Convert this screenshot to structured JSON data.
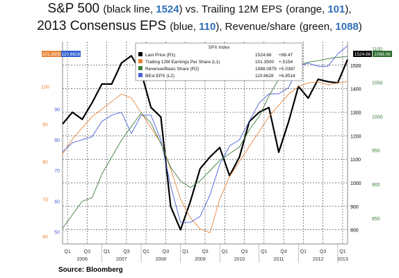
{
  "title_line1": {
    "lead": "S&P 500",
    "p1": "(black line, ",
    "v1": "1524",
    "p2": ") vs. Trailing 12M EPS",
    "p3": "(orange, ",
    "v2": "101",
    "p4": "),"
  },
  "title_line2": {
    "lead": "2013 Consensus EPS",
    "p1": "(blue, ",
    "v1": "110",
    "p2": "), Revenue/share",
    "p3": "(green, ",
    "v2": "1088",
    "p4": ")"
  },
  "source": "Source:  Bloomberg",
  "chart_data": {
    "type": "line",
    "legend": {
      "header": "SPX Index",
      "placement": "top-center",
      "entries": [
        {
          "label": "Last Price  (R1)",
          "value": "1524.66",
          "change": "+98.47",
          "color": "#000000"
        },
        {
          "label": "Trailing 12M Earnings Per Share  (L1)",
          "value": "101.3500",
          "change": "+.5154",
          "color": "#e8853a"
        },
        {
          "label": "Revenue/Basic Share  (R2)",
          "value": "1088.0879",
          "change": "+5.0387",
          "color": "#3e7c3e"
        },
        {
          "label": "BEst EPS  (L2)",
          "value": "110.6628",
          "change": "+6.8514",
          "color": "#4a5fd6"
        }
      ]
    },
    "x_axis": {
      "quarter_ticks": [
        "Q1",
        "Q3",
        "Q1",
        "Q3",
        "Q1",
        "Q3",
        "Q1",
        "Q3",
        "Q1",
        "Q3",
        "Q1",
        "Q3",
        "Q1",
        "Q3",
        "Q1"
      ],
      "years": [
        "2006",
        "2007",
        "2008",
        "2009",
        "2010",
        "2011",
        "2012",
        "2013"
      ]
    },
    "left_orange_axis": {
      "ticks": [
        "100",
        "90",
        "80",
        "70",
        "60"
      ],
      "range": [
        58,
        112
      ]
    },
    "left_blue_axis": {
      "ticks": [
        "90",
        "80",
        "70",
        "60",
        "50"
      ],
      "range": [
        46,
        112
      ]
    },
    "right_price_axis": {
      "ticks": [
        "1500",
        "1400",
        "1300",
        "1200",
        "1100",
        "1000",
        "900",
        "800"
      ],
      "range": [
        740,
        1600
      ]
    },
    "right_revenue_axis": {
      "ticks": [
        "1100",
        "1050",
        "1000",
        "950",
        "900",
        "850"
      ],
      "range": [
        812,
        1110
      ]
    },
    "current_value_labels": {
      "orange": "101.3500",
      "blue": "110.6628",
      "price": "1524.66",
      "revenue": "1088.08"
    },
    "x_range": [
      2006.0,
      2013.25
    ],
    "series": [
      {
        "name": "Last Price (R1)",
        "color": "#000000",
        "axis": "right_price",
        "x": [
          2006.0,
          2006.25,
          2006.5,
          2006.75,
          2007.0,
          2007.25,
          2007.5,
          2007.75,
          2008.0,
          2008.25,
          2008.5,
          2008.75,
          2009.0,
          2009.25,
          2009.5,
          2009.75,
          2010.0,
          2010.25,
          2010.5,
          2010.75,
          2011.0,
          2011.25,
          2011.5,
          2011.75,
          2012.0,
          2012.25,
          2012.5,
          2012.75,
          2013.0,
          2013.25
        ],
        "values": [
          1250,
          1300,
          1270,
          1340,
          1420,
          1420,
          1510,
          1540,
          1470,
          1320,
          1280,
          900,
          800,
          920,
          1060,
          1110,
          1150,
          1030,
          1110,
          1260,
          1300,
          1320,
          1130,
          1260,
          1410,
          1360,
          1440,
          1430,
          1425,
          1524
        ]
      },
      {
        "name": "Trailing 12M Earnings Per Share (L1)",
        "color": "#e8853a",
        "axis": "left_orange",
        "x": [
          2006.0,
          2006.25,
          2006.5,
          2006.75,
          2007.0,
          2007.25,
          2007.5,
          2007.75,
          2008.0,
          2008.25,
          2008.5,
          2008.75,
          2009.0,
          2009.25,
          2009.5,
          2009.75,
          2010.0,
          2010.25,
          2010.5,
          2010.75,
          2011.0,
          2011.25,
          2011.5,
          2011.75,
          2012.0,
          2012.25,
          2012.5,
          2012.75,
          2013.0,
          2013.25
        ],
        "values": [
          82,
          86,
          89,
          92,
          94,
          96,
          98,
          97,
          93,
          89,
          85,
          78,
          70,
          65,
          62,
          61,
          70,
          76,
          80,
          84,
          88,
          92,
          95,
          98,
          100,
          101,
          101.3,
          100.5,
          101,
          101.35
        ]
      },
      {
        "name": "BEst EPS (L2)",
        "color": "#4a5fd6",
        "axis": "left_blue",
        "x": [
          2006.0,
          2006.25,
          2006.5,
          2006.75,
          2007.0,
          2007.25,
          2007.5,
          2007.75,
          2008.0,
          2008.25,
          2008.5,
          2008.75,
          2009.0,
          2009.25,
          2009.5,
          2009.75,
          2010.0,
          2010.25,
          2010.5,
          2010.75,
          2011.0,
          2011.25,
          2011.5,
          2011.75,
          2012.0,
          2012.25,
          2012.5,
          2012.75,
          2013.0,
          2013.25
        ],
        "values": [
          76,
          79,
          80,
          81,
          86,
          88,
          89,
          82,
          88,
          88,
          80,
          65,
          53,
          53,
          55,
          62,
          72,
          78,
          80,
          86,
          92,
          95,
          95,
          97,
          104,
          105,
          104,
          104,
          108,
          110.66
        ]
      },
      {
        "name": "Revenue/Basic Share (R2)",
        "color": "#3e7c3e",
        "axis": "right_revenue",
        "x": [
          2006.0,
          2006.25,
          2006.5,
          2006.75,
          2007.0,
          2007.25,
          2007.5,
          2007.75,
          2008.0,
          2008.25,
          2008.5,
          2008.75,
          2009.0,
          2009.25,
          2009.5,
          2009.75,
          2010.0,
          2010.25,
          2010.5,
          2010.75,
          2011.0,
          2011.25,
          2011.5,
          2011.75,
          2012.0,
          2012.25,
          2012.5,
          2012.75,
          2013.0,
          2013.25
        ],
        "values": [
          835,
          855,
          875,
          880,
          915,
          940,
          965,
          985,
          1005,
          990,
          960,
          925,
          905,
          895,
          905,
          920,
          935,
          945,
          955,
          980,
          1000,
          1030,
          1055,
          1070,
          1075,
          1080,
          1082,
          1085,
          1087,
          1088.08
        ]
      }
    ]
  }
}
